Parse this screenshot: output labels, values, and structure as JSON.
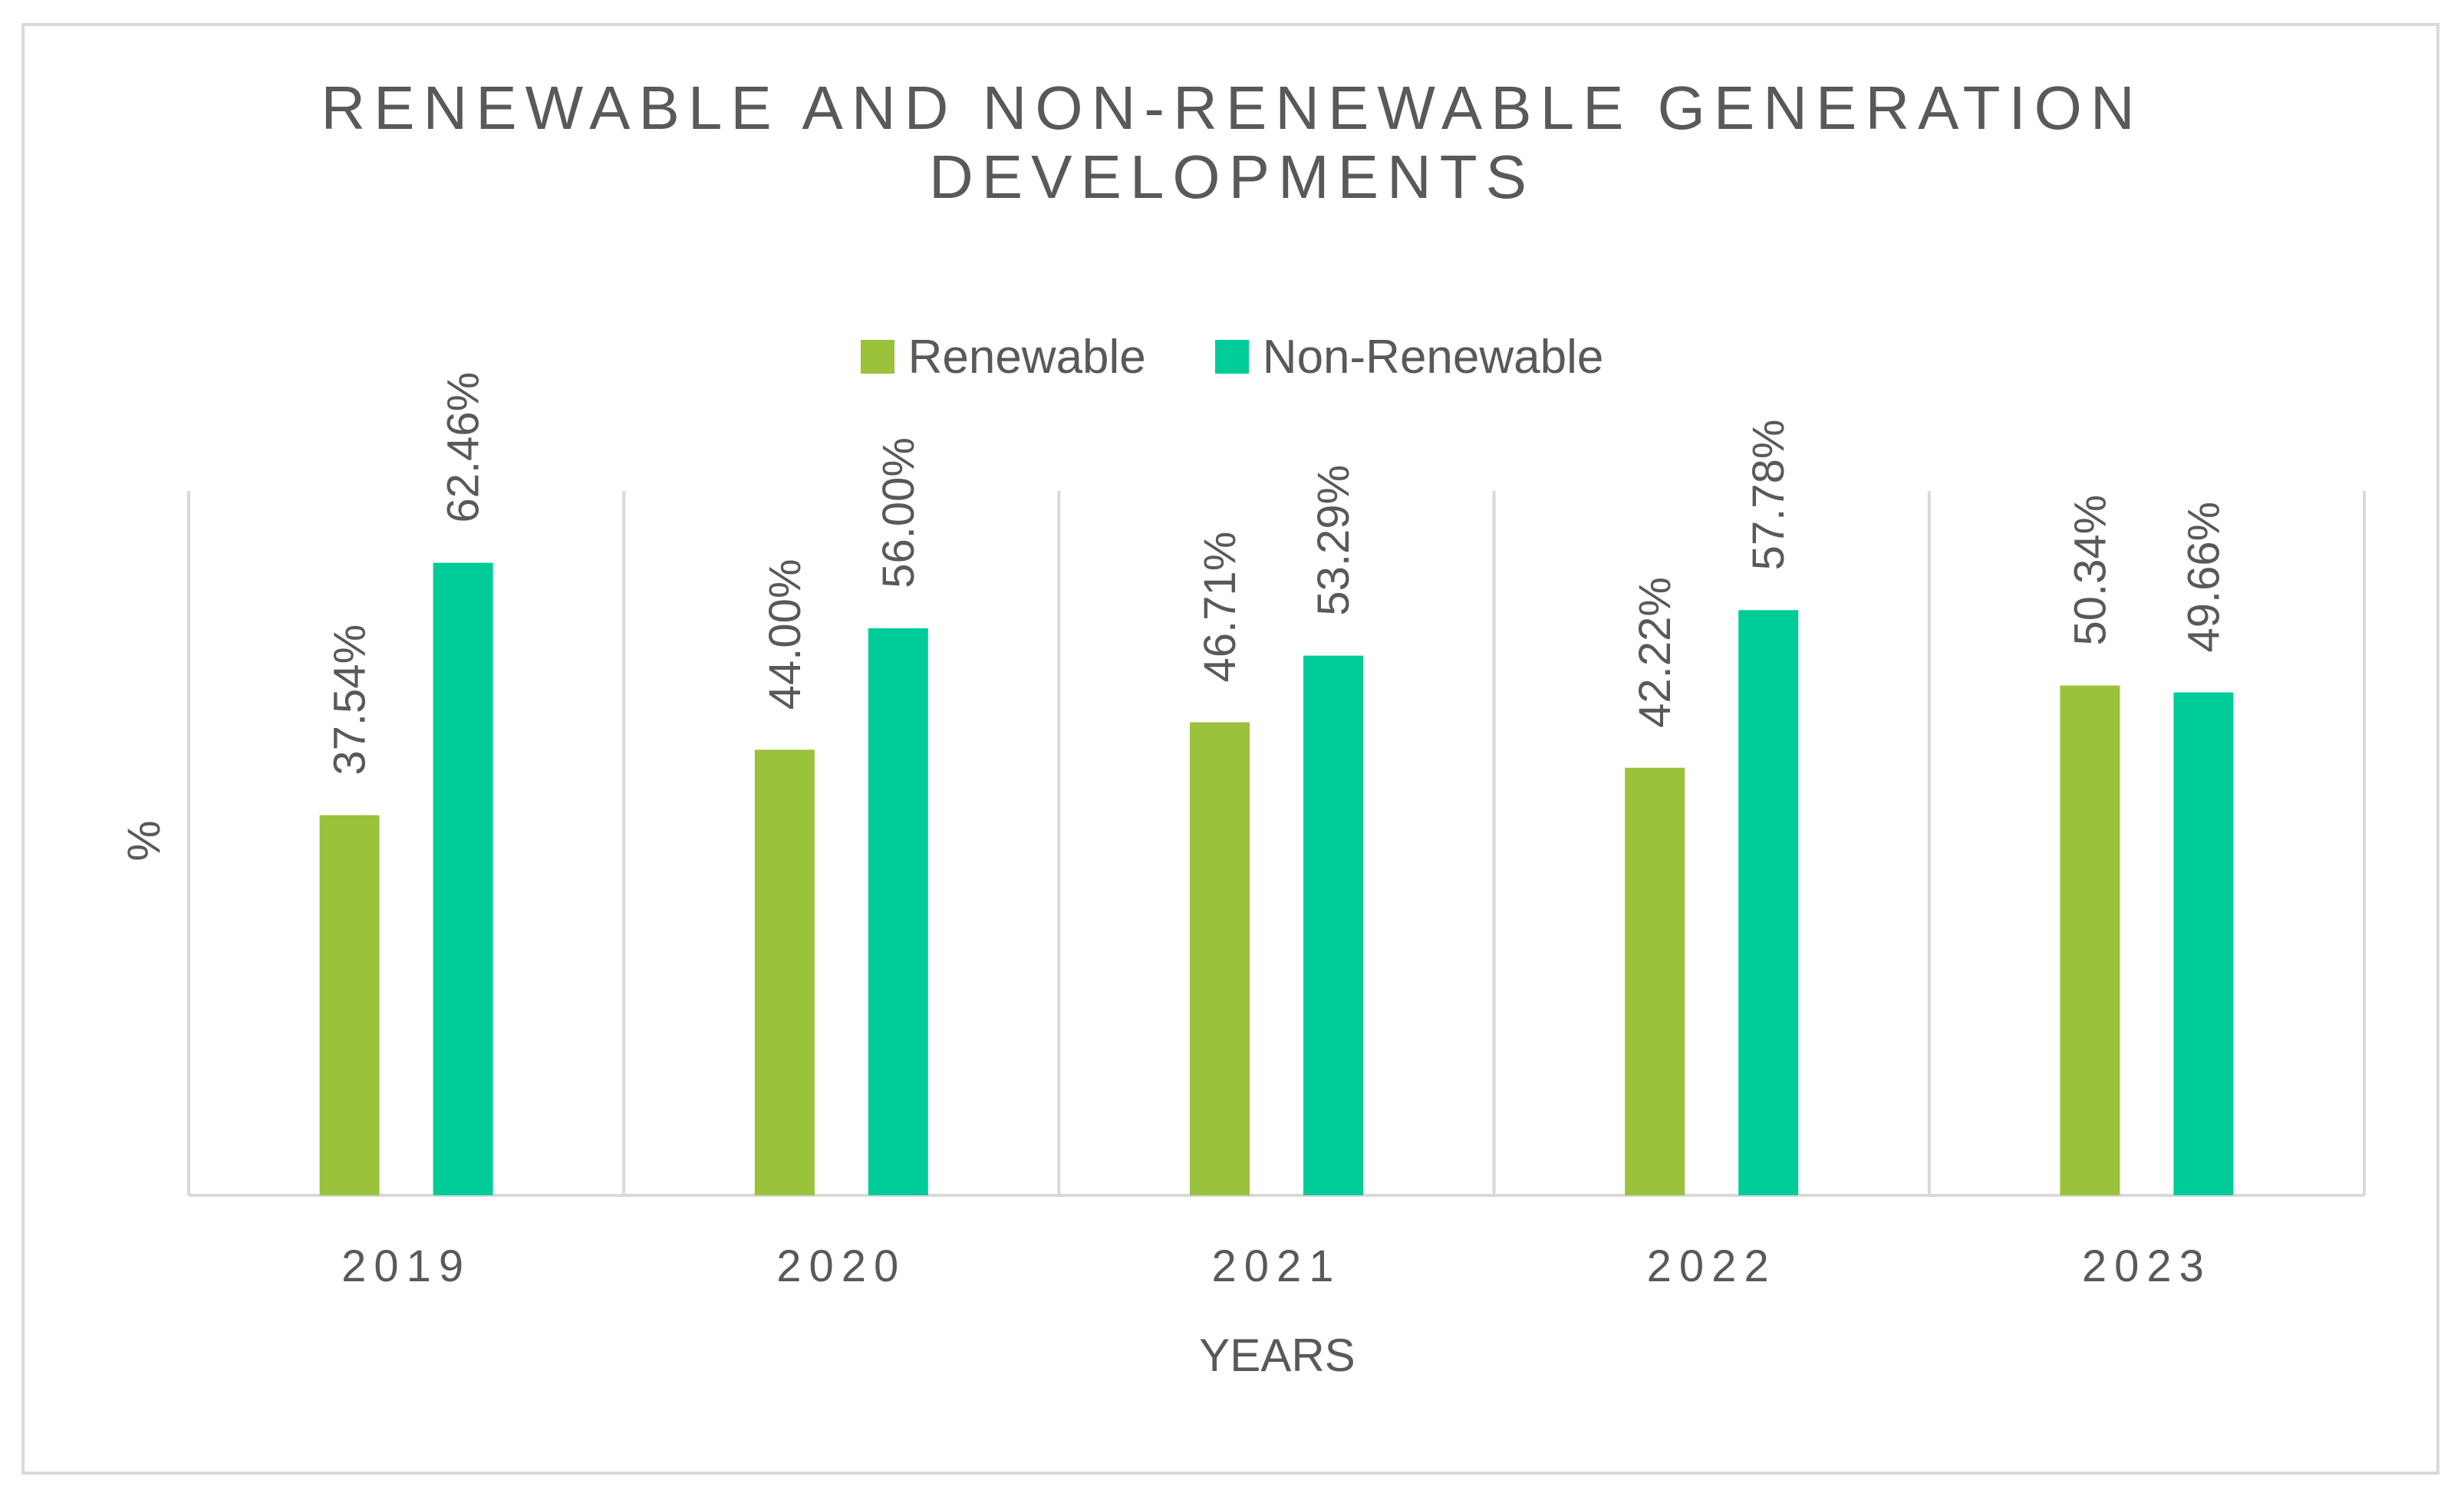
{
  "chart_data": {
    "type": "bar",
    "title_line1": "RENEWABLE AND NON-RENEWABLE GENERATION",
    "title_line2": "DEVELOPMENTS",
    "categories": [
      "2019",
      "2020",
      "2021",
      "2022",
      "2023"
    ],
    "series": [
      {
        "name": "Renewable",
        "color": "#9bc23b",
        "values": [
          37.54,
          44.0,
          46.71,
          42.22,
          50.34
        ],
        "labels": [
          "37.54%",
          "44.00%",
          "46.71%",
          "42.22%",
          "50.34%"
        ]
      },
      {
        "name": "Non-Renewable",
        "color": "#00cc99",
        "values": [
          62.46,
          56.0,
          53.29,
          57.78,
          49.66
        ],
        "labels": [
          "62.46%",
          "56.00%",
          "53.29%",
          "57.78%",
          "49.66%"
        ]
      }
    ],
    "xlabel": "YEARS",
    "ylabel": "%",
    "ylim": [
      0,
      70
    ],
    "legend_position": "top",
    "grid": "vertical category separators"
  }
}
